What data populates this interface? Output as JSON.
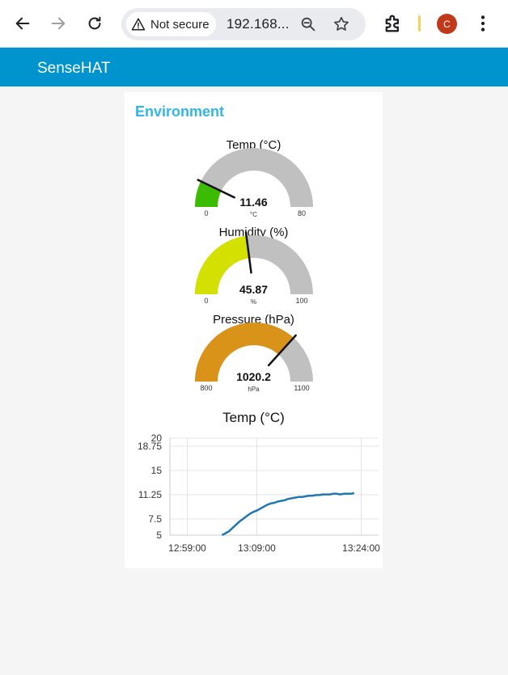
{
  "browser": {
    "security_label": "Not secure",
    "url": "192.168...",
    "profile_initial": "C",
    "icons": [
      "back-arrow-icon",
      "forward-arrow-icon",
      "reload-icon",
      "warning-icon",
      "zoom-out-icon",
      "star-icon",
      "extensions-icon",
      "kebab-menu-icon"
    ]
  },
  "app": {
    "title": "SenseHAT",
    "header_color": "#0094ce"
  },
  "group": {
    "title": "Environment"
  },
  "gauges": [
    {
      "title": "Temp (°C)",
      "value": 11.46,
      "display": "11.46",
      "unit": "°C",
      "min": 0,
      "max": 80,
      "min_label": "0",
      "max_label": "80",
      "color": "#3cbc00"
    },
    {
      "title": "Humidity (%)",
      "value": 45.87,
      "display": "45.87",
      "unit": "%",
      "min": 0,
      "max": 100,
      "min_label": "0",
      "max_label": "100",
      "color": "#d4e100"
    },
    {
      "title": "Pressure (hPa)",
      "value": 1020.2,
      "display": "1020.2",
      "unit": "hPa",
      "min": 800,
      "max": 1100,
      "min_label": "800",
      "max_label": "1100",
      "color": "#d99318"
    }
  ],
  "chart_data": {
    "type": "line",
    "title": "Temp (°C)",
    "xlabel": "",
    "ylabel": "",
    "x_tick_labels": [
      "12:59:00",
      "13:09:00",
      "13:24:00"
    ],
    "x_ticks_minutes": [
      0,
      10,
      25
    ],
    "xlim_minutes": [
      -2.5,
      27.5
    ],
    "y_tick_labels": [
      "5",
      "7.5",
      "11.25",
      "15",
      "18.75",
      "20"
    ],
    "y_ticks": [
      5,
      7.5,
      11.25,
      15,
      18.75,
      20
    ],
    "ylim": [
      5,
      20
    ],
    "grid": true,
    "line_color": "#1f77b4",
    "series": [
      {
        "x_minutes": [
          5.0,
          5.5,
          6.0,
          6.5,
          7.0,
          7.5,
          8.0,
          8.5,
          9.0,
          9.5,
          10.0,
          10.5,
          11.0,
          11.5,
          12.0,
          12.5,
          13.0,
          13.5,
          14.0,
          14.5,
          15.0,
          15.5,
          16.0,
          16.5,
          17.0,
          17.5,
          18.0,
          18.5,
          19.0,
          19.5,
          20.0,
          20.5,
          21.0,
          21.5,
          22.0,
          22.5,
          23.0,
          23.5,
          24.0
        ],
        "values": [
          5.0,
          5.3,
          5.6,
          6.1,
          6.6,
          7.1,
          7.5,
          7.9,
          8.3,
          8.6,
          8.8,
          9.1,
          9.4,
          9.7,
          9.9,
          10.0,
          10.2,
          10.3,
          10.4,
          10.6,
          10.7,
          10.8,
          10.9,
          10.9,
          11.0,
          11.1,
          11.1,
          11.2,
          11.2,
          11.3,
          11.3,
          11.3,
          11.4,
          11.4,
          11.3,
          11.4,
          11.4,
          11.4,
          11.5
        ]
      }
    ]
  }
}
